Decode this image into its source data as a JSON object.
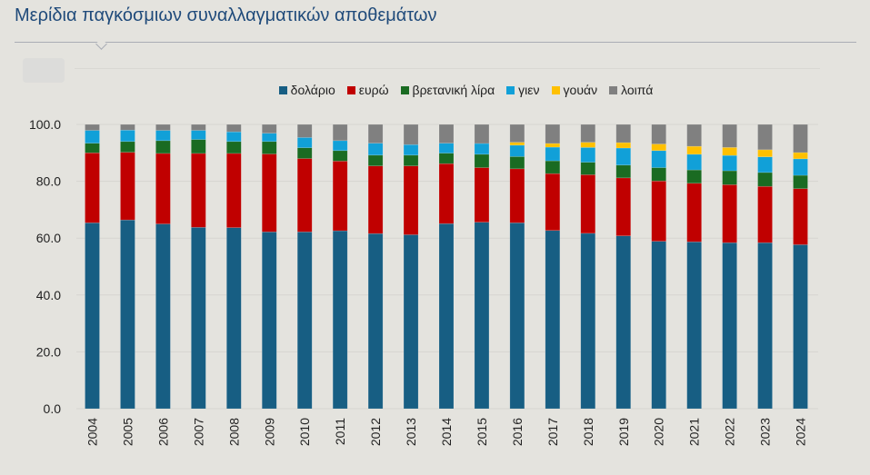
{
  "header": {
    "title": "Μερίδια παγκόσμιων συναλλαγματικών αποθεμάτων"
  },
  "chart_data": {
    "type": "bar",
    "stacked": true,
    "title": "Μερίδια παγκόσμιων συναλλαγματικών αποθεμάτων",
    "xlabel": "",
    "ylabel": "",
    "ylim": [
      0,
      100
    ],
    "yticks": [
      "0.0",
      "20.0",
      "40.0",
      "60.0",
      "80.0",
      "100.0"
    ],
    "ytick_values": [
      0,
      20,
      40,
      60,
      80,
      100
    ],
    "grid": true,
    "legend_position": "top-center",
    "categories": [
      "2004",
      "2005",
      "2006",
      "2007",
      "2008",
      "2009",
      "2010",
      "2011",
      "2012",
      "2013",
      "2014",
      "2015",
      "2016",
      "2017",
      "2018",
      "2019",
      "2020",
      "2021",
      "2022",
      "2023",
      "2024"
    ],
    "series": [
      {
        "name": "δολάριο",
        "color": "#175e83",
        "values": [
          65.4,
          66.4,
          65.0,
          63.8,
          63.7,
          62.2,
          62.2,
          62.6,
          61.6,
          61.2,
          65.1,
          65.6,
          65.4,
          62.7,
          61.7,
          60.8,
          58.9,
          58.7,
          58.4,
          58.4,
          57.7
        ]
      },
      {
        "name": "ευρώ",
        "color": "#c00000",
        "values": [
          24.6,
          23.8,
          24.8,
          26.0,
          26.1,
          27.4,
          25.8,
          24.5,
          23.8,
          24.2,
          21.1,
          19.2,
          19.0,
          20.0,
          20.6,
          20.4,
          21.2,
          20.6,
          20.4,
          19.8,
          19.7
        ]
      },
      {
        "name": "βρετανική λίρα",
        "color": "#1a6b22",
        "values": [
          3.4,
          3.8,
          4.5,
          4.9,
          4.2,
          4.4,
          3.8,
          3.7,
          3.8,
          3.8,
          3.7,
          4.7,
          4.3,
          4.5,
          4.4,
          4.5,
          4.7,
          4.7,
          4.9,
          4.9,
          4.7
        ]
      },
      {
        "name": "γιεν",
        "color": "#11a0d8",
        "values": [
          4.5,
          4.0,
          3.6,
          3.2,
          3.4,
          2.9,
          3.6,
          3.5,
          4.2,
          3.7,
          3.5,
          3.8,
          4.0,
          4.8,
          5.2,
          6.0,
          6.0,
          5.5,
          5.4,
          5.5,
          5.8
        ]
      },
      {
        "name": "γουάν",
        "color": "#ffc000",
        "values": [
          0,
          0,
          0,
          0,
          0,
          0,
          0,
          0,
          0,
          0,
          0,
          0,
          1.0,
          1.3,
          1.8,
          1.9,
          2.3,
          2.8,
          2.8,
          2.5,
          2.2
        ]
      },
      {
        "name": "λοιπά",
        "color": "#808080",
        "values": [
          2.1,
          2.0,
          2.1,
          2.1,
          2.6,
          3.1,
          4.6,
          5.7,
          6.6,
          7.1,
          6.6,
          6.7,
          6.3,
          6.7,
          6.3,
          6.4,
          6.9,
          7.7,
          8.1,
          8.9,
          9.9
        ]
      }
    ]
  }
}
